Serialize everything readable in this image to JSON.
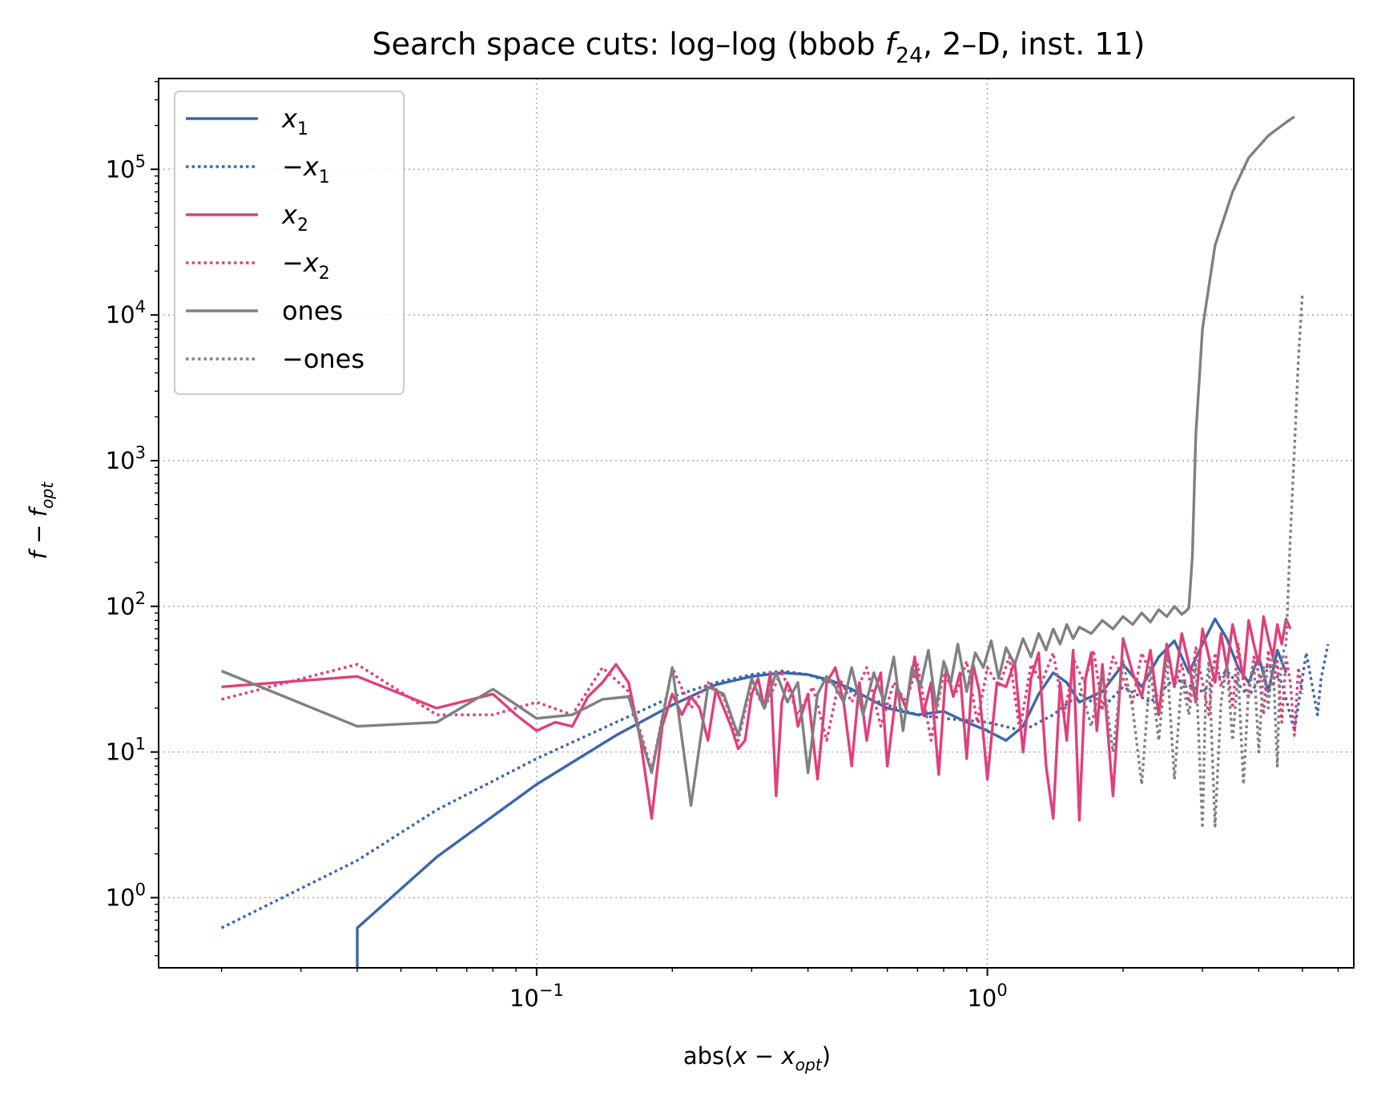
{
  "chart_data": {
    "type": "line",
    "title": "Search space cuts: log–log (bbob",
    "title_func": "f",
    "title_func_sub": "24",
    "title_rest": ", 2–D, inst. 11)",
    "xlabel_prefix": "abs(",
    "xlabel_var": "x",
    "xlabel_minus": " − ",
    "xlabel_opt": "x",
    "xlabel_opt_sub": "opt",
    "xlabel_suffix": ")",
    "ylabel_f": "f",
    "ylabel_minus": " − ",
    "ylabel_fopt": "f",
    "ylabel_fopt_sub": "opt",
    "x_scale": "log",
    "y_scale": "log",
    "xlim": [
      0.0145,
      6.5
    ],
    "ylim": [
      0.33,
      420000
    ],
    "grid": true,
    "legend_position": "top-left",
    "x_ticks": [
      {
        "value": 0.1,
        "base": "10",
        "exp": "−1"
      },
      {
        "value": 1,
        "base": "10",
        "exp": "0"
      }
    ],
    "y_ticks": [
      {
        "value": 1,
        "base": "10",
        "exp": "0"
      },
      {
        "value": 10,
        "base": "10",
        "exp": "1"
      },
      {
        "value": 100,
        "base": "10",
        "exp": "2"
      },
      {
        "value": 1000,
        "base": "10",
        "exp": "3"
      },
      {
        "value": 10000,
        "base": "10",
        "exp": "4"
      },
      {
        "value": 100000,
        "base": "10",
        "exp": "5"
      }
    ],
    "series": [
      {
        "legend_prefix": "",
        "legend_var": "x",
        "legend_sub": "1",
        "color": "#3a67ad",
        "style": "solid",
        "x": [
          0.04,
          0.04,
          0.06,
          0.1,
          0.15,
          0.2,
          0.25,
          0.3,
          0.35,
          0.4,
          0.45,
          0.5,
          0.55,
          0.6,
          0.7,
          0.8,
          0.9,
          1.0,
          1.1,
          1.2,
          1.3,
          1.4,
          1.5,
          1.6,
          1.8,
          2.0,
          2.2,
          2.4,
          2.6,
          2.8,
          3.0,
          3.2,
          3.4,
          3.6,
          3.8,
          4.0,
          4.2,
          4.4,
          4.6
        ],
        "y": [
          0.33,
          0.62,
          1.9,
          6.0,
          13.0,
          21.0,
          29.0,
          33.0,
          35.0,
          34.0,
          31.0,
          27.0,
          23.0,
          20.0,
          18.0,
          19.0,
          16.0,
          14.0,
          12.0,
          15.0,
          25.0,
          35.0,
          30.0,
          22.0,
          26.0,
          40.0,
          28.0,
          45.0,
          58.0,
          35.0,
          55.0,
          82.0,
          60.0,
          38.0,
          30.0,
          45.0,
          26.0,
          50.0,
          35.0
        ]
      },
      {
        "legend_prefix": "−",
        "legend_var": "x",
        "legend_sub": "1",
        "color": "#3a67ad",
        "style": "dotted",
        "x": [
          0.02,
          0.04,
          0.06,
          0.1,
          0.15,
          0.2,
          0.25,
          0.3,
          0.35,
          0.4,
          0.45,
          0.5,
          0.6,
          0.7,
          0.8,
          1.0,
          1.2,
          1.4,
          1.6,
          1.8,
          2.0,
          2.3,
          2.6,
          3.0,
          3.4,
          3.8,
          4.2,
          4.5,
          4.8,
          5.1,
          5.4,
          5.5,
          5.7
        ],
        "y": [
          0.62,
          1.8,
          4.0,
          9.0,
          16.0,
          24.0,
          30.0,
          34.0,
          36.0,
          34.0,
          30.0,
          26.0,
          21.0,
          18.0,
          17.0,
          16.0,
          14.0,
          18.0,
          25.0,
          20.0,
          28.0,
          22.0,
          32.0,
          26.0,
          36.0,
          24.0,
          40.0,
          30.0,
          14.0,
          48.0,
          18.0,
          32.0,
          55.0
        ]
      },
      {
        "legend_prefix": "",
        "legend_var": "x",
        "legend_sub": "2",
        "color": "#e0407a",
        "style": "solid",
        "x": [
          0.02,
          0.04,
          0.06,
          0.08,
          0.09,
          0.1,
          0.11,
          0.12,
          0.13,
          0.14,
          0.15,
          0.16,
          0.17,
          0.18,
          0.19,
          0.2,
          0.21,
          0.22,
          0.23,
          0.24,
          0.25,
          0.26,
          0.27,
          0.28,
          0.29,
          0.3,
          0.31,
          0.32,
          0.33,
          0.34,
          0.35,
          0.36,
          0.37,
          0.38,
          0.4,
          0.42,
          0.44,
          0.46,
          0.48,
          0.5,
          0.52,
          0.54,
          0.56,
          0.58,
          0.6,
          0.63,
          0.66,
          0.69,
          0.72,
          0.75,
          0.78,
          0.81,
          0.84,
          0.87,
          0.9,
          0.93,
          0.96,
          1.0,
          1.05,
          1.1,
          1.15,
          1.2,
          1.25,
          1.3,
          1.35,
          1.4,
          1.45,
          1.5,
          1.55,
          1.6,
          1.65,
          1.7,
          1.75,
          1.8,
          1.9,
          2.0,
          2.1,
          2.2,
          2.3,
          2.4,
          2.5,
          2.6,
          2.7,
          2.8,
          2.9,
          3.0,
          3.1,
          3.2,
          3.3,
          3.4,
          3.5,
          3.6,
          3.7,
          3.8,
          3.9,
          4.0,
          4.1,
          4.2,
          4.3,
          4.4,
          4.5,
          4.6,
          4.7
        ],
        "y": [
          28,
          33,
          20,
          25,
          18,
          14,
          16,
          15,
          24,
          30,
          40,
          30,
          12,
          3.5,
          15,
          25,
          18,
          24,
          20,
          12,
          27,
          20,
          15,
          10.5,
          12,
          25,
          32,
          20,
          35,
          5,
          22,
          30,
          25,
          15,
          25,
          6.5,
          30,
          38,
          22,
          8,
          30,
          12,
          25,
          35,
          8,
          28,
          20,
          45,
          18,
          30,
          7,
          38,
          24,
          35,
          9,
          40,
          26,
          6.5,
          30,
          28,
          42,
          10,
          32,
          48,
          8,
          3.5,
          30,
          12,
          50,
          3.4,
          32,
          48,
          14,
          40,
          5,
          60,
          35,
          24,
          50,
          18,
          55,
          28,
          65,
          40,
          22,
          70,
          45,
          30,
          65,
          38,
          75,
          50,
          32,
          80,
          55,
          40,
          85,
          60,
          45,
          75,
          55,
          82,
          70
        ]
      },
      {
        "legend_prefix": "−",
        "legend_var": "x",
        "legend_sub": "2",
        "color": "#e0407a",
        "style": "dotted",
        "x": [
          0.02,
          0.04,
          0.06,
          0.08,
          0.1,
          0.12,
          0.14,
          0.16,
          0.18,
          0.2,
          0.22,
          0.24,
          0.26,
          0.28,
          0.3,
          0.32,
          0.35,
          0.38,
          0.41,
          0.44,
          0.47,
          0.5,
          0.54,
          0.58,
          0.62,
          0.66,
          0.7,
          0.75,
          0.8,
          0.85,
          0.9,
          0.95,
          1.0,
          1.06,
          1.12,
          1.18,
          1.25,
          1.32,
          1.4,
          1.48,
          1.56,
          1.64,
          1.72,
          1.8,
          1.9,
          2.0,
          2.1,
          2.2,
          2.3,
          2.4,
          2.5,
          2.6,
          2.7,
          2.8,
          2.9,
          3.0,
          3.1,
          3.2,
          3.3,
          3.4,
          3.5,
          3.6,
          3.7,
          3.8,
          3.9,
          4.0,
          4.1,
          4.2,
          4.3,
          4.4,
          4.5,
          4.6,
          4.7,
          4.8,
          4.9,
          5.0
        ],
        "y": [
          23,
          40,
          18,
          18,
          22,
          18,
          38,
          26,
          7.5,
          38,
          20,
          30,
          24,
          12,
          30,
          20,
          36,
          18,
          28,
          12,
          32,
          22,
          38,
          15,
          30,
          22,
          40,
          12,
          35,
          25,
          42,
          16,
          38,
          28,
          45,
          14,
          40,
          30,
          48,
          18,
          42,
          30,
          50,
          20,
          45,
          32,
          22,
          48,
          35,
          18,
          50,
          28,
          40,
          22,
          52,
          30,
          18,
          48,
          28,
          40,
          20,
          55,
          30,
          24,
          45,
          35,
          18,
          50,
          28,
          42,
          16,
          45,
          30,
          13,
          38,
          25
        ]
      },
      {
        "legend_prefix": "",
        "legend_var": "ones",
        "legend_sub": "",
        "color": "#808080",
        "style": "solid",
        "x": [
          0.02,
          0.04,
          0.06,
          0.08,
          0.1,
          0.12,
          0.14,
          0.16,
          0.18,
          0.2,
          0.22,
          0.24,
          0.26,
          0.28,
          0.3,
          0.32,
          0.34,
          0.36,
          0.38,
          0.4,
          0.42,
          0.44,
          0.46,
          0.48,
          0.5,
          0.53,
          0.56,
          0.59,
          0.62,
          0.65,
          0.68,
          0.71,
          0.74,
          0.77,
          0.8,
          0.83,
          0.86,
          0.9,
          0.94,
          0.98,
          1.02,
          1.06,
          1.1,
          1.15,
          1.2,
          1.25,
          1.3,
          1.35,
          1.4,
          1.45,
          1.5,
          1.55,
          1.6,
          1.7,
          1.8,
          1.9,
          2.0,
          2.1,
          2.2,
          2.3,
          2.4,
          2.5,
          2.6,
          2.7,
          2.75,
          2.78,
          2.8,
          2.85,
          2.9,
          3.0,
          3.2,
          3.5,
          3.8,
          4.2,
          4.6,
          4.8
        ],
        "y": [
          36,
          15,
          16,
          27,
          17,
          18,
          23,
          24,
          7.2,
          38,
          4.3,
          28,
          25,
          13,
          32,
          20,
          35,
          22,
          30,
          7.2,
          25,
          33,
          28,
          22,
          38,
          18,
          35,
          22,
          45,
          14,
          38,
          28,
          50,
          20,
          42,
          30,
          55,
          26,
          48,
          38,
          58,
          32,
          52,
          40,
          60,
          45,
          65,
          50,
          70,
          55,
          75,
          60,
          72,
          65,
          80,
          70,
          85,
          75,
          90,
          78,
          95,
          85,
          100,
          88,
          92,
          95,
          98,
          220,
          1500,
          8000,
          30000,
          70000,
          120000,
          170000,
          210000,
          230000
        ]
      },
      {
        "legend_prefix": "−",
        "legend_var": "ones",
        "legend_sub": "",
        "color": "#808080",
        "style": "dotted",
        "x": [
          1.6,
          1.7,
          1.8,
          1.9,
          2.0,
          2.1,
          2.2,
          2.3,
          2.4,
          2.5,
          2.6,
          2.7,
          2.8,
          2.9,
          3.0,
          3.05,
          3.1,
          3.2,
          3.3,
          3.4,
          3.5,
          3.6,
          3.7,
          3.8,
          3.9,
          4.0,
          4.1,
          4.2,
          4.3,
          4.4,
          4.45,
          4.5,
          4.55,
          4.6,
          4.7,
          4.8,
          4.9,
          5.0
        ],
        "y": [
          30,
          15,
          35,
          10,
          42,
          20,
          6.0,
          38,
          12,
          45,
          6.5,
          32,
          18,
          40,
          3.0,
          25,
          42,
          3.1,
          22,
          40,
          12,
          35,
          6.0,
          28,
          42,
          10,
          38,
          20,
          45,
          8.0,
          30,
          40,
          50,
          55,
          300,
          1200,
          5000,
          14000
        ]
      }
    ]
  }
}
